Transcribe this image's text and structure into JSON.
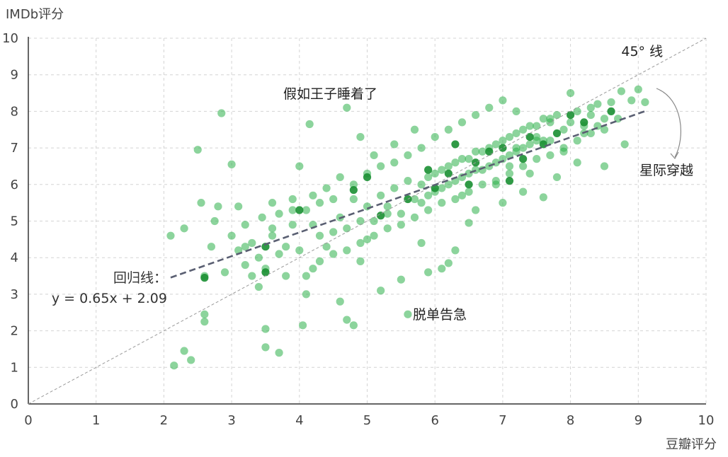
{
  "chart_data": {
    "type": "scatter",
    "xlabel": "豆瓣评分",
    "ylabel": "IMDb评分",
    "xlim": [
      0,
      10
    ],
    "ylim": [
      0,
      10
    ],
    "xticks": [
      "0",
      "1",
      "2",
      "3",
      "4",
      "5",
      "6",
      "7",
      "8",
      "9",
      "10"
    ],
    "yticks": [
      "0",
      "1",
      "2",
      "3",
      "4",
      "5",
      "6",
      "7",
      "8",
      "9",
      "10"
    ],
    "grid": true,
    "grid_style": "dashed",
    "point_color": "#2eb04a",
    "point_dark_color": "#1a8f32",
    "regression": {
      "slope": 0.65,
      "intercept": 2.09,
      "x_range": [
        2.1,
        9.1
      ],
      "label_line1": "回归线：",
      "label_line2": "y = 0.65x + 2.09",
      "color": "#5a5f72"
    },
    "diagonal": {
      "label": "45° 线",
      "color": "#9a9a9a"
    },
    "annotations": [
      {
        "id": "prince",
        "text": "假如王子睡着了",
        "x": 4.75,
        "y": 8.1
      },
      {
        "id": "interstellar",
        "text": "星际穿越",
        "x": 9.2,
        "y": 8.65
      },
      {
        "id": "danger",
        "text": "脱单告急",
        "x": 5.6,
        "y": 2.45
      }
    ],
    "points": [
      [
        2.1,
        4.6
      ],
      [
        2.15,
        1.05
      ],
      [
        2.3,
        1.45
      ],
      [
        2.4,
        1.2
      ],
      [
        2.3,
        4.8
      ],
      [
        2.6,
        2.25
      ],
      [
        2.6,
        2.45
      ],
      [
        2.6,
        3.5
      ],
      [
        2.55,
        5.5
      ],
      [
        2.5,
        6.95
      ],
      [
        2.75,
        5.0
      ],
      [
        2.8,
        5.4
      ],
      [
        2.85,
        7.95
      ],
      [
        3.0,
        6.55
      ],
      [
        3.1,
        4.2
      ],
      [
        3.2,
        3.8
      ],
      [
        3.3,
        3.5
      ],
      [
        3.4,
        3.2
      ],
      [
        3.5,
        1.55
      ],
      [
        3.5,
        2.05
      ],
      [
        3.7,
        1.4
      ],
      [
        3.2,
        4.9
      ],
      [
        3.45,
        5.1
      ],
      [
        3.6,
        4.6
      ],
      [
        3.7,
        4.1
      ],
      [
        3.8,
        3.5
      ],
      [
        3.9,
        5.6
      ],
      [
        4.0,
        6.5
      ],
      [
        4.05,
        2.15
      ],
      [
        4.1,
        3.0
      ],
      [
        4.2,
        3.7
      ],
      [
        4.15,
        7.65
      ],
      [
        4.3,
        4.6
      ],
      [
        4.5,
        5.6
      ],
      [
        4.6,
        2.8
      ],
      [
        4.7,
        2.3
      ],
      [
        4.8,
        2.15
      ],
      [
        4.7,
        8.1
      ],
      [
        4.9,
        7.3
      ],
      [
        4.9,
        3.9
      ],
      [
        5.0,
        4.5
      ],
      [
        5.1,
        6.8
      ],
      [
        5.2,
        3.1
      ],
      [
        5.3,
        5.2
      ],
      [
        5.4,
        7.1
      ],
      [
        5.5,
        3.4
      ],
      [
        5.6,
        2.45
      ],
      [
        5.7,
        7.5
      ],
      [
        5.8,
        4.4
      ],
      [
        5.9,
        3.6
      ],
      [
        6.1,
        3.7
      ],
      [
        6.2,
        3.85
      ],
      [
        6.3,
        4.2
      ],
      [
        6.4,
        5.7
      ],
      [
        6.5,
        4.95
      ],
      [
        6.6,
        5.3
      ],
      [
        6.9,
        6.0
      ],
      [
        7.0,
        5.5
      ],
      [
        7.1,
        6.5
      ],
      [
        7.2,
        7.0
      ],
      [
        7.3,
        5.8
      ],
      [
        7.4,
        6.3
      ],
      [
        7.5,
        7.2
      ],
      [
        7.6,
        5.65
      ],
      [
        7.7,
        7.7
      ],
      [
        7.8,
        6.2
      ],
      [
        7.9,
        6.9
      ],
      [
        8.0,
        8.5
      ],
      [
        8.1,
        6.6
      ],
      [
        8.2,
        7.4
      ],
      [
        8.3,
        8.1
      ],
      [
        8.4,
        7.6
      ],
      [
        8.5,
        6.5
      ],
      [
        8.6,
        8.25
      ],
      [
        8.7,
        7.8
      ],
      [
        8.75,
        8.55
      ],
      [
        8.8,
        7.1
      ],
      [
        8.9,
        8.3
      ],
      [
        9.0,
        8.6
      ],
      [
        9.1,
        8.25
      ],
      [
        2.7,
        4.3
      ],
      [
        2.9,
        3.6
      ],
      [
        3.1,
        5.4
      ],
      [
        3.3,
        4.4
      ],
      [
        3.4,
        4.0
      ],
      [
        3.5,
        3.7
      ],
      [
        3.6,
        4.8
      ],
      [
        3.7,
        5.2
      ],
      [
        3.8,
        4.3
      ],
      [
        3.9,
        4.9
      ],
      [
        4.0,
        4.2
      ],
      [
        4.1,
        5.3
      ],
      [
        4.2,
        4.9
      ],
      [
        4.3,
        5.5
      ],
      [
        4.4,
        4.3
      ],
      [
        4.5,
        4.7
      ],
      [
        4.6,
        5.1
      ],
      [
        4.7,
        4.8
      ],
      [
        4.8,
        5.6
      ],
      [
        4.9,
        5.0
      ],
      [
        5.0,
        5.4
      ],
      [
        5.1,
        5.0
      ],
      [
        5.2,
        5.7
      ],
      [
        5.3,
        5.4
      ],
      [
        5.4,
        5.9
      ],
      [
        5.5,
        5.2
      ],
      [
        5.6,
        6.1
      ],
      [
        5.7,
        5.6
      ],
      [
        5.8,
        6.0
      ],
      [
        5.9,
        5.7
      ],
      [
        6.0,
        6.3
      ],
      [
        6.1,
        5.9
      ],
      [
        6.2,
        6.5
      ],
      [
        6.3,
        6.1
      ],
      [
        6.4,
        6.7
      ],
      [
        6.5,
        6.3
      ],
      [
        6.6,
        6.9
      ],
      [
        6.7,
        6.4
      ],
      [
        6.8,
        7.0
      ],
      [
        6.9,
        6.6
      ],
      [
        7.0,
        7.2
      ],
      [
        7.1,
        6.8
      ],
      [
        7.2,
        7.4
      ],
      [
        7.3,
        7.0
      ],
      [
        7.4,
        7.6
      ],
      [
        7.5,
        7.3
      ],
      [
        7.6,
        7.8
      ],
      [
        7.7,
        7.2
      ],
      [
        7.8,
        7.9
      ],
      [
        7.9,
        7.5
      ],
      [
        8.0,
        7.7
      ],
      [
        8.1,
        8.0
      ],
      [
        8.2,
        7.6
      ],
      [
        8.3,
        7.9
      ],
      [
        8.4,
        8.2
      ],
      [
        8.5,
        7.8
      ],
      [
        3.0,
        4.6
      ],
      [
        3.2,
        4.3
      ],
      [
        3.6,
        5.5
      ],
      [
        3.9,
        5.3
      ],
      [
        4.2,
        5.7
      ],
      [
        4.4,
        5.9
      ],
      [
        4.6,
        6.2
      ],
      [
        4.8,
        6.0
      ],
      [
        5.0,
        6.3
      ],
      [
        5.2,
        6.5
      ],
      [
        5.4,
        6.6
      ],
      [
        5.6,
        6.8
      ],
      [
        5.8,
        7.0
      ],
      [
        6.0,
        7.3
      ],
      [
        6.2,
        7.5
      ],
      [
        6.4,
        7.7
      ],
      [
        6.6,
        7.9
      ],
      [
        6.8,
        8.1
      ],
      [
        7.0,
        8.3
      ],
      [
        7.2,
        8.0
      ],
      [
        4.1,
        3.5
      ],
      [
        4.3,
        3.9
      ],
      [
        4.5,
        4.1
      ],
      [
        4.7,
        4.2
      ],
      [
        4.9,
        4.4
      ],
      [
        5.1,
        4.6
      ],
      [
        5.3,
        4.8
      ],
      [
        5.5,
        4.9
      ],
      [
        5.7,
        5.1
      ],
      [
        5.9,
        5.3
      ],
      [
        6.1,
        5.5
      ],
      [
        6.3,
        5.6
      ],
      [
        6.5,
        5.8
      ],
      [
        6.7,
        6.0
      ],
      [
        6.9,
        6.1
      ],
      [
        7.1,
        6.3
      ],
      [
        7.3,
        6.5
      ],
      [
        7.5,
        6.7
      ],
      [
        7.7,
        6.8
      ],
      [
        7.9,
        7.0
      ],
      [
        8.1,
        7.2
      ],
      [
        8.3,
        7.4
      ],
      [
        8.5,
        7.5
      ],
      [
        5.8,
        5.5
      ],
      [
        6.0,
        5.8
      ],
      [
        6.2,
        6.0
      ],
      [
        6.4,
        6.2
      ],
      [
        6.6,
        6.4
      ],
      [
        6.8,
        6.5
      ],
      [
        7.0,
        6.7
      ],
      [
        7.2,
        6.9
      ],
      [
        7.4,
        7.1
      ],
      [
        7.6,
        7.2
      ],
      [
        5.9,
        6.2
      ],
      [
        6.1,
        6.4
      ],
      [
        6.3,
        6.6
      ],
      [
        6.5,
        6.7
      ],
      [
        6.7,
        6.9
      ],
      [
        6.9,
        7.1
      ],
      [
        7.1,
        7.3
      ],
      [
        7.3,
        7.5
      ],
      [
        7.5,
        7.6
      ],
      [
        7.7,
        7.8
      ]
    ],
    "dark_points": [
      [
        2.6,
        3.45
      ],
      [
        3.5,
        3.6
      ],
      [
        3.5,
        4.3
      ],
      [
        4.0,
        5.3
      ],
      [
        4.8,
        5.85
      ],
      [
        5.0,
        6.2
      ],
      [
        5.2,
        5.15
      ],
      [
        5.6,
        5.6
      ],
      [
        5.9,
        6.4
      ],
      [
        6.0,
        5.9
      ],
      [
        6.2,
        6.3
      ],
      [
        6.3,
        7.1
      ],
      [
        6.5,
        6.0
      ],
      [
        6.6,
        6.6
      ],
      [
        6.8,
        6.9
      ],
      [
        7.0,
        7.0
      ],
      [
        7.1,
        6.1
      ],
      [
        7.3,
        6.7
      ],
      [
        7.4,
        7.3
      ],
      [
        7.6,
        7.1
      ],
      [
        7.8,
        7.4
      ],
      [
        8.0,
        7.9
      ],
      [
        8.2,
        7.7
      ],
      [
        8.6,
        8.0
      ]
    ]
  }
}
